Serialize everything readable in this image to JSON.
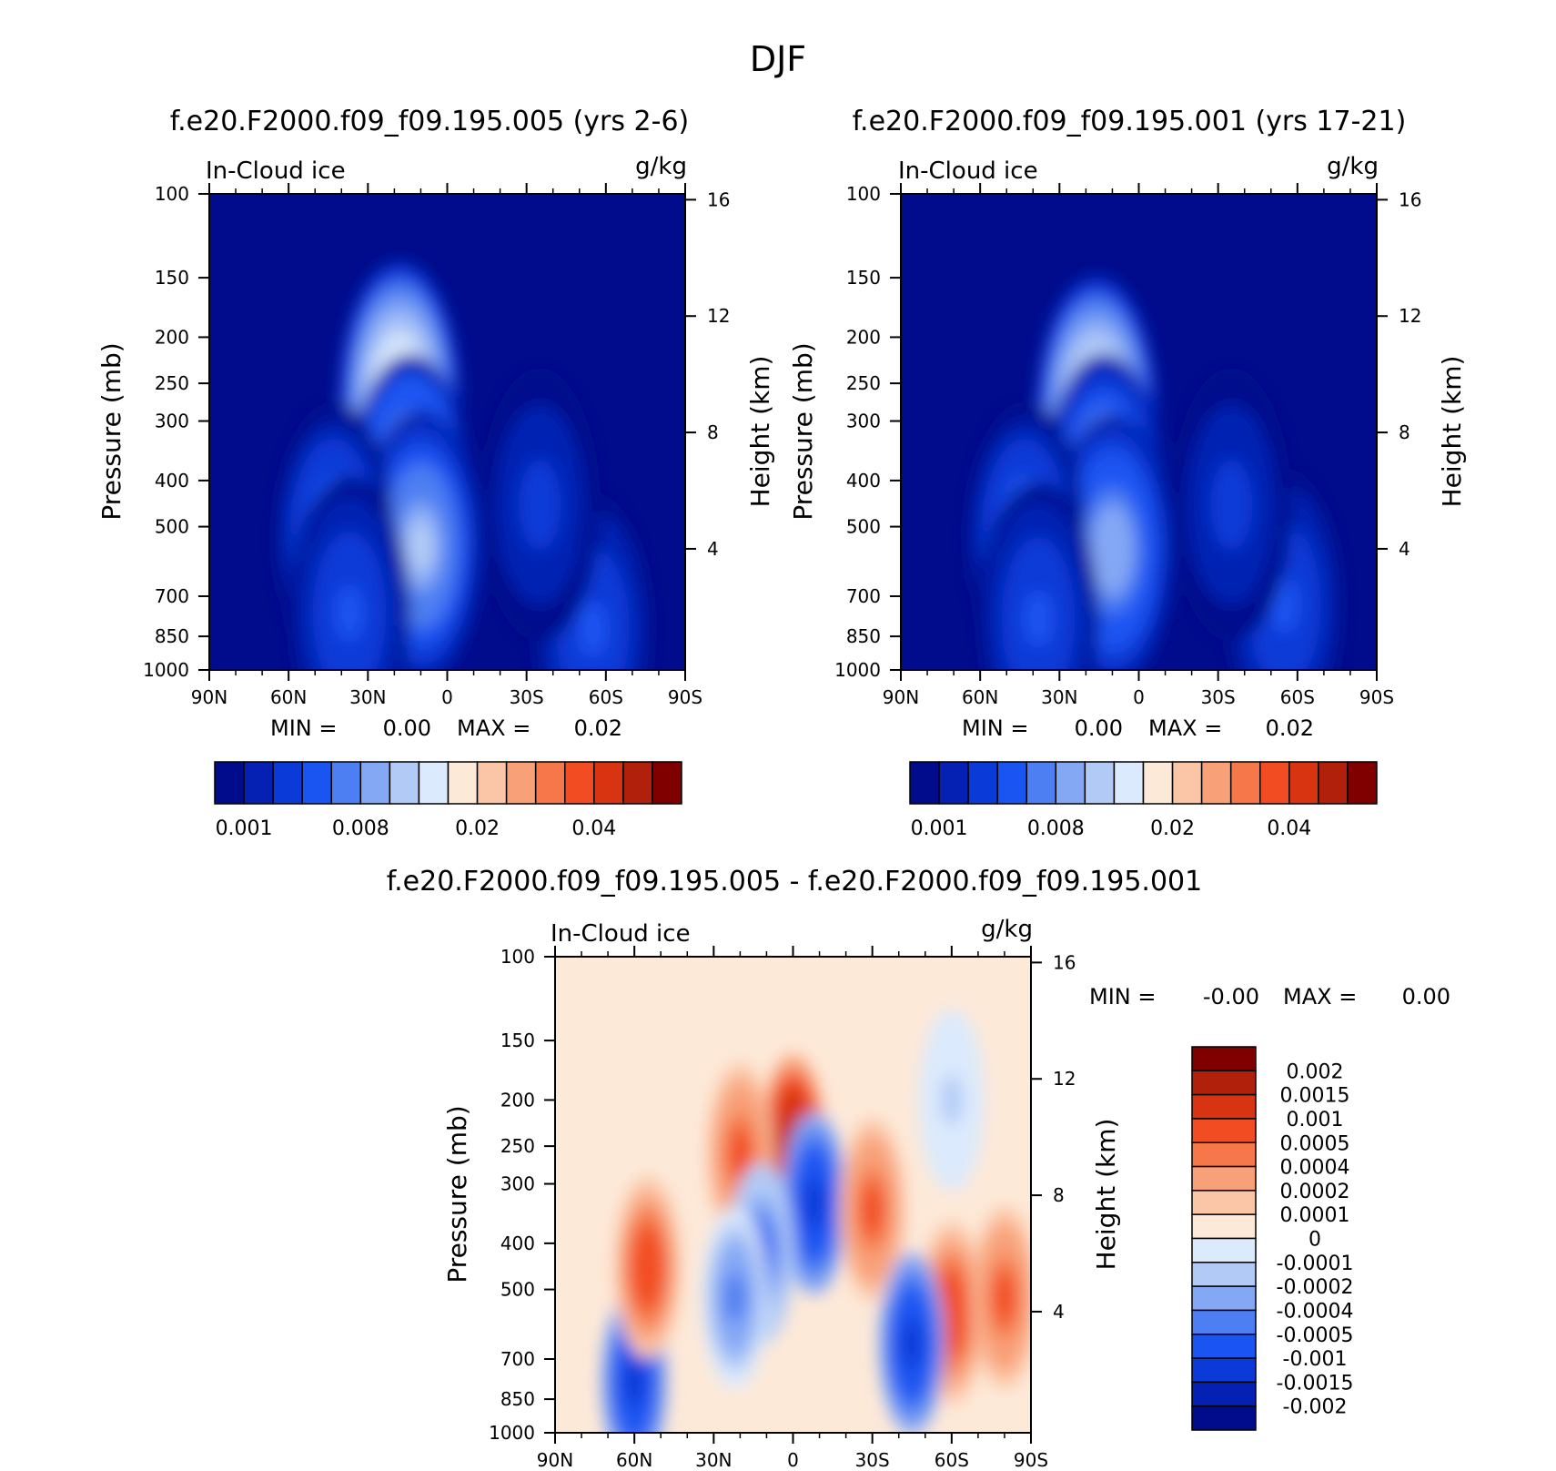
{
  "figure_title": "DJF",
  "chart_data": [
    {
      "type": "heatmap",
      "panel": "top-left",
      "title": "f.e20.F2000.f09_f09.195.005 (yrs 2-6)",
      "variable": "In-Cloud ice",
      "units": "g/kg",
      "xlabel": "",
      "ylabel": "Pressure (mb)",
      "y2label": "Height (km)",
      "x_ticks": [
        "90N",
        "60N",
        "30N",
        "0",
        "30S",
        "60S",
        "90S"
      ],
      "y_ticks": [
        "100",
        "150",
        "200",
        "250",
        "300",
        "400",
        "500",
        "700",
        "850",
        "1000"
      ],
      "y2_ticks": [
        "16",
        "12",
        "8",
        "4"
      ],
      "min_label": "MIN =",
      "min_value": "0.00",
      "max_label": "MAX =",
      "max_value": "0.02",
      "colorbar_labels": [
        "0.001",
        "0.008",
        "0.02",
        "0.04"
      ],
      "colors": [
        "#000c8c",
        "#0521b3",
        "#0a3ad8",
        "#1a55f2",
        "#4d7ef2",
        "#85a8f5",
        "#b2cbf6",
        "#dbeafd",
        "#fde9d8",
        "#fbc6a7",
        "#f8a078",
        "#f5774a",
        "#f24d22",
        "#d93411",
        "#b0200a",
        "#800000"
      ],
      "features": [
        {
          "x": 18,
          "p": 270,
          "v": 0.022
        },
        {
          "x": 14,
          "p": 420,
          "v": 0.014
        },
        {
          "x": 10,
          "p": 550,
          "v": 0.011
        },
        {
          "x": 43,
          "p": 530,
          "v": 0.0065
        },
        {
          "x": 37,
          "p": 760,
          "v": 0.0045
        },
        {
          "x": -55,
          "p": 820,
          "v": 0.0045
        },
        {
          "x": -35,
          "p": 450,
          "v": 0.0025
        }
      ]
    },
    {
      "type": "heatmap",
      "panel": "top-right",
      "title": "f.e20.F2000.f09_f09.195.001 (yrs 17-21)",
      "variable": "In-Cloud ice",
      "units": "g/kg",
      "xlabel": "",
      "ylabel": "Pressure (mb)",
      "y2label": "Height (km)",
      "x_ticks": [
        "90N",
        "60N",
        "30N",
        "0",
        "30S",
        "60S",
        "90S"
      ],
      "y_ticks": [
        "100",
        "150",
        "200",
        "250",
        "300",
        "400",
        "500",
        "700",
        "850",
        "1000"
      ],
      "y2_ticks": [
        "16",
        "12",
        "8",
        "4"
      ],
      "min_label": "MIN =",
      "min_value": "0.00",
      "max_label": "MAX =",
      "max_value": "0.02",
      "colorbar_labels": [
        "0.001",
        "0.008",
        "0.02",
        "0.04"
      ],
      "colors": [
        "#000c8c",
        "#0521b3",
        "#0a3ad8",
        "#1a55f2",
        "#4d7ef2",
        "#85a8f5",
        "#b2cbf6",
        "#dbeafd",
        "#fde9d8",
        "#fbc6a7",
        "#f8a078",
        "#f5774a",
        "#f24d22",
        "#d93411",
        "#b0200a",
        "#800000"
      ],
      "features": [
        {
          "x": 16,
          "p": 290,
          "v": 0.021
        },
        {
          "x": 13,
          "p": 420,
          "v": 0.013
        },
        {
          "x": 10,
          "p": 560,
          "v": 0.01
        },
        {
          "x": 43,
          "p": 530,
          "v": 0.0065
        },
        {
          "x": 38,
          "p": 780,
          "v": 0.0045
        },
        {
          "x": -55,
          "p": 730,
          "v": 0.0045
        },
        {
          "x": -35,
          "p": 450,
          "v": 0.0025
        }
      ]
    },
    {
      "type": "heatmap",
      "panel": "bottom",
      "title": "f.e20.F2000.f09_f09.195.005 - f.e20.F2000.f09_f09.195.001",
      "variable": "In-Cloud ice",
      "units": "g/kg",
      "xlabel": "",
      "ylabel": "Pressure (mb)",
      "y2label": "Height (km)",
      "x_ticks": [
        "90N",
        "60N",
        "30N",
        "0",
        "30S",
        "60S",
        "90S"
      ],
      "y_ticks": [
        "100",
        "150",
        "200",
        "250",
        "300",
        "400",
        "500",
        "700",
        "850",
        "1000"
      ],
      "y2_ticks": [
        "16",
        "12",
        "8",
        "4"
      ],
      "min_label": "MIN =",
      "min_value": "-0.00",
      "max_label": "MAX =",
      "max_value": "0.00",
      "colorbar_labels": [
        "0.002",
        "0.0015",
        "0.001",
        "0.0005",
        "0.0004",
        "0.0002",
        "0.0001",
        "0",
        "-0.0001",
        "-0.0002",
        "-0.0004",
        "-0.0005",
        "-0.001",
        "-0.0015",
        "-0.002"
      ],
      "colors": [
        "#800000",
        "#b0200a",
        "#d93411",
        "#f24d22",
        "#f5774a",
        "#f8a078",
        "#fbc6a7",
        "#fde9d8",
        "#dbeafd",
        "#b2cbf6",
        "#85a8f5",
        "#4d7ef2",
        "#1a55f2",
        "#0a3ad8",
        "#0521b3",
        "#000c8c"
      ],
      "features": [
        {
          "x": 0,
          "p": 250,
          "v": 0.0017
        },
        {
          "x": -8,
          "p": 330,
          "v": -0.0012
        },
        {
          "x": -30,
          "p": 340,
          "v": 0.0006
        },
        {
          "x": -60,
          "p": 560,
          "v": 0.0008
        },
        {
          "x": -80,
          "p": 520,
          "v": 0.0006
        },
        {
          "x": -45,
          "p": 650,
          "v": -0.0012
        },
        {
          "x": 60,
          "p": 780,
          "v": -0.0012
        },
        {
          "x": 55,
          "p": 450,
          "v": 0.0008
        },
        {
          "x": 20,
          "p": 260,
          "v": 0.0006
        },
        {
          "x": 12,
          "p": 420,
          "v": -0.0005
        },
        {
          "x": 22,
          "p": 520,
          "v": -0.0004
        },
        {
          "x": -60,
          "p": 200,
          "v": -0.0001
        }
      ]
    }
  ]
}
